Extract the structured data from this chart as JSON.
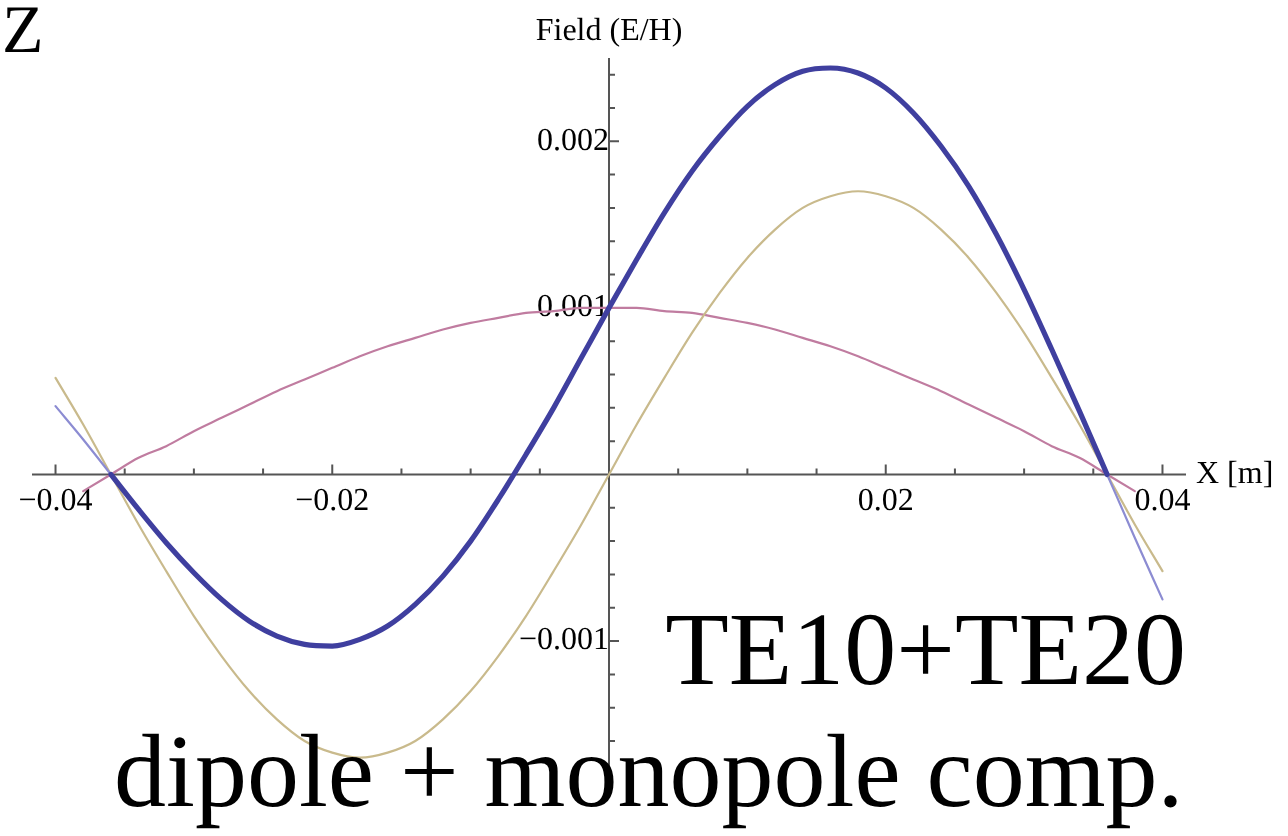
{
  "chart_data": {
    "type": "line",
    "title": "Z",
    "xlabel": "X [m]",
    "ylabel": "Field (E/H)",
    "annotations": [
      "TE10+TE20",
      "dipole + monopole comp."
    ],
    "xlim": [
      -0.0417,
      0.0417
    ],
    "ylim": [
      -0.00175,
      0.0025
    ],
    "xticks": [
      {
        "value": -0.04,
        "label": "−0.04"
      },
      {
        "value": -0.035,
        "label": null
      },
      {
        "value": -0.03,
        "label": null
      },
      {
        "value": -0.025,
        "label": null
      },
      {
        "value": -0.02,
        "label": "−0.02"
      },
      {
        "value": -0.015,
        "label": null
      },
      {
        "value": -0.01,
        "label": null
      },
      {
        "value": -0.005,
        "label": null
      },
      {
        "value": 0.005,
        "label": null
      },
      {
        "value": 0.01,
        "label": null
      },
      {
        "value": 0.015,
        "label": null
      },
      0.02,
      {
        "value": 0.025,
        "label": null
      },
      {
        "value": 0.03,
        "label": null
      },
      {
        "value": 0.035,
        "label": null
      },
      0.04
    ],
    "yticks": [
      {
        "value": -0.0016,
        "label": null
      },
      {
        "value": -0.0014,
        "label": null
      },
      {
        "value": -0.0012,
        "label": null
      },
      {
        "value": -0.001,
        "label": "−0.001"
      },
      {
        "value": -0.0008,
        "label": null
      },
      {
        "value": -0.0006,
        "label": null
      },
      {
        "value": -0.0004,
        "label": null
      },
      {
        "value": -0.0002,
        "label": null
      },
      {
        "value": 0.0002,
        "label": null
      },
      {
        "value": 0.0004,
        "label": null
      },
      {
        "value": 0.0006,
        "label": null
      },
      {
        "value": 0.0008,
        "label": null
      },
      0.001,
      {
        "value": 0.0012,
        "label": null
      },
      {
        "value": 0.0014,
        "label": null
      },
      {
        "value": 0.0016,
        "label": null
      },
      {
        "value": 0.0018,
        "label": null
      },
      0.002,
      {
        "value": 0.0022,
        "label": null
      },
      {
        "value": 0.0024,
        "label": null
      }
    ],
    "grid": false,
    "marker": "none",
    "series": [
      {
        "color": "#3f3f9f",
        "x": [
          -0.036,
          -0.034,
          -0.032,
          -0.03,
          -0.028,
          -0.026,
          -0.024,
          -0.022,
          -0.02,
          -0.018,
          -0.016,
          -0.014,
          -0.012,
          -0.01,
          -0.008,
          -0.006,
          -0.004,
          -0.002,
          0,
          0.002,
          0.004,
          0.006,
          0.008,
          0.01,
          0.012,
          0.014,
          0.016,
          0.018,
          0.02,
          0.022,
          0.024,
          0.026,
          0.028,
          0.03,
          0.032,
          0.034,
          0.036
        ],
        "values": [
          0,
          -0.00021,
          -0.00041,
          -0.00059,
          -0.00075,
          -0.00088,
          -0.00097,
          -0.00102,
          -0.00103,
          -0.00099,
          -0.00091,
          -0.00078,
          -0.00061,
          -0.0004,
          -0.00015,
          0.00012,
          0.0004,
          0.0007,
          0.001,
          0.00129,
          0.00157,
          0.00182,
          0.00203,
          0.00221,
          0.00234,
          0.00242,
          0.00244,
          0.00241,
          0.00232,
          0.00217,
          0.00197,
          0.00173,
          0.00144,
          0.00111,
          0.00075,
          0.00038,
          0
        ]
      },
      {
        "color": "#8c8cd2",
        "x": [
          -0.04,
          -0.038,
          -0.036,
          0,
          0.036,
          0.038,
          0.04
        ],
        "values": [
          0.00041,
          0.00021,
          0,
          null,
          0,
          -0.00038,
          -0.00075
        ]
      },
      {
        "color": "#c9ba8c",
        "x": [
          -0.04,
          -0.038,
          -0.036,
          -0.034,
          -0.032,
          -0.03,
          -0.028,
          -0.026,
          -0.024,
          -0.022,
          -0.02,
          -0.018,
          -0.016,
          -0.014,
          -0.012,
          -0.01,
          -0.008,
          -0.006,
          -0.004,
          -0.002,
          0,
          0.002,
          0.004,
          0.006,
          0.008,
          0.01,
          0.012,
          0.014,
          0.016,
          0.018,
          0.02,
          0.022,
          0.024,
          0.026,
          0.028,
          0.03,
          0.032,
          0.034,
          0.036,
          0.038,
          0.04
        ],
        "values": [
          0.00058,
          0.0003,
          0,
          -0.0003,
          -0.00058,
          -0.00085,
          -0.00109,
          -0.0013,
          -0.00147,
          -0.0016,
          -0.00167,
          -0.0017,
          -0.00167,
          -0.0016,
          -0.00147,
          -0.0013,
          -0.00109,
          -0.00085,
          -0.00058,
          -0.0003,
          0,
          0.0003,
          0.00058,
          0.00085,
          0.00109,
          0.0013,
          0.00147,
          0.0016,
          0.00167,
          0.0017,
          0.00167,
          0.0016,
          0.00147,
          0.0013,
          0.00109,
          0.00085,
          0.00058,
          0.0003,
          0,
          -0.0003,
          -0.00058
        ]
      },
      {
        "color": "#c07ca0",
        "x": [
          -0.038,
          -0.036,
          -0.034,
          -0.032,
          -0.03,
          -0.028,
          -0.026,
          -0.024,
          -0.022,
          -0.02,
          -0.018,
          -0.016,
          -0.014,
          -0.012,
          -0.01,
          -0.008,
          -0.006,
          -0.004,
          -0.002,
          0,
          0.002,
          0.004,
          0.006,
          0.008,
          0.01,
          0.012,
          0.014,
          0.016,
          0.018,
          0.02,
          0.022,
          0.024,
          0.026,
          0.028,
          0.03,
          0.032,
          0.034,
          0.036,
          0.038
        ],
        "values": [
          -0.0001,
          0,
          0.0001,
          0.00017,
          0.00026,
          0.00034,
          0.00042,
          0.0005,
          0.00057,
          0.00064,
          0.00071,
          0.00077,
          0.00082,
          0.00087,
          0.00091,
          0.00094,
          0.00097,
          0.00098,
          0.001,
          0.001,
          0.001,
          0.00098,
          0.00097,
          0.00094,
          0.00091,
          0.00087,
          0.00082,
          0.00077,
          0.00071,
          0.00064,
          0.00057,
          0.0005,
          0.00042,
          0.00034,
          0.00026,
          0.00017,
          0.0001,
          0,
          -0.0001
        ]
      }
    ]
  }
}
